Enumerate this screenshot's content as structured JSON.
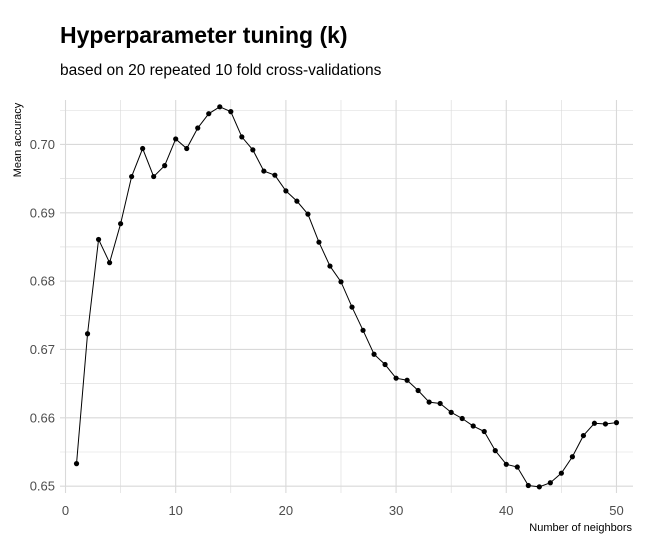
{
  "header": {
    "title": "Hyperparameter tuning (k)",
    "subtitle": "based on 20 repeated 10 fold cross-validations"
  },
  "chart_data": {
    "type": "line",
    "title": "Hyperparameter tuning (k)",
    "subtitle": "based on 20 repeated 10 fold cross-validations",
    "xlabel": "Number of neighbors",
    "ylabel": "Mean accuracy",
    "xlim": [
      -0.5,
      51.5
    ],
    "ylim": [
      0.649,
      0.7065
    ],
    "x_ticks": [
      0,
      10,
      20,
      30,
      40,
      50
    ],
    "x_tick_labels": [
      "0",
      "10",
      "20",
      "30",
      "40",
      "50"
    ],
    "y_ticks": [
      0.65,
      0.66,
      0.67,
      0.68,
      0.69,
      0.7
    ],
    "y_tick_labels": [
      "0.65",
      "0.66",
      "0.67",
      "0.68",
      "0.69",
      "0.70"
    ],
    "grid": true,
    "legend": "none",
    "line_color": "#000000",
    "grid_color": "#d9d9d9",
    "series": [
      {
        "x": [
          1,
          2,
          3,
          4,
          5,
          6,
          7,
          8,
          9,
          10,
          11,
          12,
          13,
          14,
          15,
          16,
          17,
          18,
          19,
          20,
          21,
          22,
          23,
          24,
          25,
          26,
          27,
          28,
          29,
          30,
          31,
          32,
          33,
          34,
          35,
          36,
          37,
          38,
          39,
          40,
          41,
          42,
          43,
          44,
          45,
          46,
          47,
          48,
          49,
          50
        ],
        "values": [
          0.6533,
          0.6723,
          0.6861,
          0.6827,
          0.6884,
          0.6953,
          0.6994,
          0.6953,
          0.6969,
          0.7008,
          0.6994,
          0.7024,
          0.7045,
          0.7055,
          0.7048,
          0.7011,
          0.6992,
          0.6961,
          0.6955,
          0.6932,
          0.6917,
          0.6898,
          0.6857,
          0.6822,
          0.6799,
          0.6762,
          0.6728,
          0.6693,
          0.6678,
          0.6658,
          0.6655,
          0.664,
          0.6623,
          0.6621,
          0.6608,
          0.6599,
          0.6588,
          0.658,
          0.6552,
          0.6532,
          0.6528,
          0.6501,
          0.6499,
          0.6505,
          0.6519,
          0.6543,
          0.6574,
          0.6592,
          0.6591,
          0.6593
        ]
      }
    ]
  }
}
